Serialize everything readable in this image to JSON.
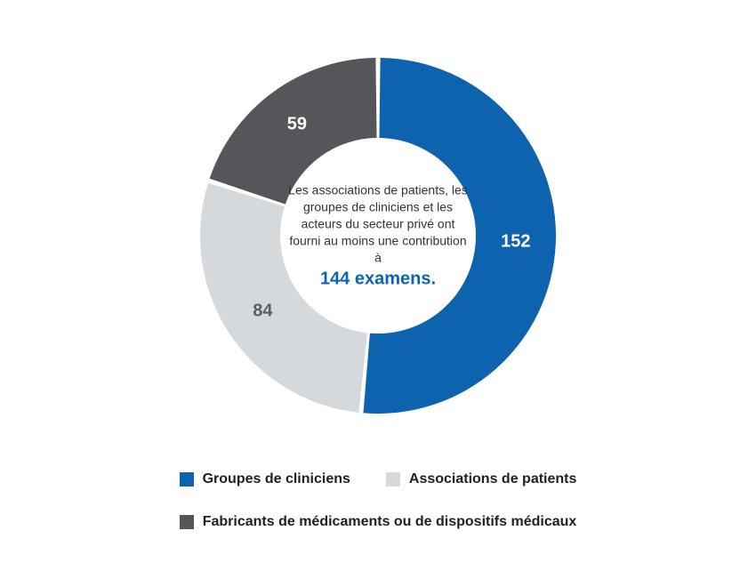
{
  "chart": {
    "type": "pie",
    "background_color": "#ffffff",
    "outer_radius": 200,
    "inner_radius": 110,
    "gap_deg": 1.5,
    "start_angle_deg": -90,
    "slices": [
      {
        "label": "Groupes de cliniciens",
        "value": 152,
        "color": "#0e63ae",
        "value_label_color": "#ffffff"
      },
      {
        "label": "Associations de patients",
        "value": 84,
        "color": "#d6d9dc",
        "value_label_color": "#5a5f64"
      },
      {
        "label": "Fabricants de médicaments ou de dispositifs médicaux",
        "value": 59,
        "color": "#55565a",
        "value_label_color": "#ffffff"
      }
    ],
    "center_text": {
      "description": "Les associations de patients, les groupes de cliniciens et les acteurs du secteur privé ont fourni au moins une contribution à",
      "highlight": "144 examens.",
      "description_color": "#333333",
      "highlight_color": "#0e63ae",
      "description_fontsize": 14,
      "highlight_fontsize": 20
    },
    "value_label_fontsize": 20,
    "legend_fontsize": 16,
    "legend_text_color": "#212121"
  }
}
